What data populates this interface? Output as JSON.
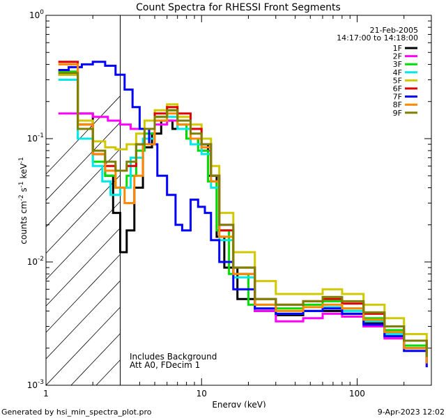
{
  "chart_data": {
    "type": "line",
    "title": "Count Spectra for RHESSI Front Segments",
    "xlabel": "Energy (keV)",
    "ylabel": "counts cm^-2 s^-1 keV^-1",
    "xscale": "log",
    "yscale": "log",
    "xlim": [
      1.0,
      300
    ],
    "ylim": [
      0.001,
      1.0
    ],
    "x_ticks": [
      {
        "value": 1,
        "label": "1"
      },
      {
        "value": 10,
        "label": "10"
      },
      {
        "value": 100,
        "label": "100"
      }
    ],
    "y_ticks": [
      {
        "value": 0.001,
        "base": "10",
        "exp": "-3"
      },
      {
        "value": 0.01,
        "base": "10",
        "exp": "-2"
      },
      {
        "value": 0.1,
        "base": "10",
        "exp": "-1"
      },
      {
        "value": 1,
        "base": "10",
        "exp": "0"
      }
    ],
    "date": "21-Feb-2005",
    "time_range": "14:17:00 to 14:18:00",
    "annotations": [
      "Includes Background",
      "Att A0, FDecim 1"
    ],
    "hatched_region_x": [
      1.0,
      3.0
    ],
    "legend_position": "top-right",
    "series": [
      {
        "name": "1F",
        "color": "#000000",
        "points": [
          [
            1.2,
            0.33
          ],
          [
            1.6,
            0.16
          ],
          [
            2.0,
            0.075
          ],
          [
            2.4,
            0.05
          ],
          [
            2.7,
            0.025
          ],
          [
            3.0,
            0.012
          ],
          [
            3.3,
            0.018
          ],
          [
            3.7,
            0.04
          ],
          [
            4.2,
            0.085
          ],
          [
            4.8,
            0.11
          ],
          [
            5.5,
            0.14
          ],
          [
            6.5,
            0.12
          ],
          [
            8.0,
            0.1
          ],
          [
            9.5,
            0.09
          ],
          [
            11.0,
            0.05
          ],
          [
            12.5,
            0.016
          ],
          [
            14,
            0.009
          ],
          [
            17,
            0.005
          ],
          [
            22,
            0.004
          ],
          [
            30,
            0.0037
          ],
          [
            45,
            0.004
          ],
          [
            60,
            0.004
          ],
          [
            80,
            0.0038
          ],
          [
            110,
            0.0032
          ],
          [
            150,
            0.0025
          ],
          [
            200,
            0.002
          ],
          [
            280,
            0.0015
          ]
        ]
      },
      {
        "name": "2F",
        "color": "#ff00ff",
        "points": [
          [
            1.2,
            0.16
          ],
          [
            1.6,
            0.16
          ],
          [
            2.0,
            0.15
          ],
          [
            2.5,
            0.14
          ],
          [
            3.0,
            0.13
          ],
          [
            3.5,
            0.12
          ],
          [
            4.0,
            0.12
          ],
          [
            4.5,
            0.12
          ],
          [
            5.0,
            0.13
          ],
          [
            6.0,
            0.14
          ],
          [
            7.0,
            0.12
          ],
          [
            8.5,
            0.1
          ],
          [
            10,
            0.08
          ],
          [
            11.5,
            0.05
          ],
          [
            13,
            0.02
          ],
          [
            16,
            0.008
          ],
          [
            22,
            0.004
          ],
          [
            30,
            0.0033
          ],
          [
            45,
            0.0035
          ],
          [
            60,
            0.0038
          ],
          [
            80,
            0.0036
          ],
          [
            110,
            0.003
          ],
          [
            150,
            0.0024
          ],
          [
            200,
            0.002
          ],
          [
            280,
            0.0014
          ]
        ]
      },
      {
        "name": "3F",
        "color": "#00dd00",
        "points": [
          [
            1.2,
            0.35
          ],
          [
            1.6,
            0.12
          ],
          [
            2.0,
            0.065
          ],
          [
            2.4,
            0.05
          ],
          [
            2.8,
            0.04
          ],
          [
            3.3,
            0.05
          ],
          [
            3.8,
            0.08
          ],
          [
            4.3,
            0.11
          ],
          [
            5.0,
            0.15
          ],
          [
            6.0,
            0.17
          ],
          [
            7.0,
            0.13
          ],
          [
            8.0,
            0.1
          ],
          [
            9.5,
            0.08
          ],
          [
            11,
            0.045
          ],
          [
            12.5,
            0.018
          ],
          [
            15,
            0.008
          ],
          [
            20,
            0.0045
          ],
          [
            30,
            0.0042
          ],
          [
            45,
            0.0045
          ],
          [
            60,
            0.0048
          ],
          [
            80,
            0.0042
          ],
          [
            110,
            0.0035
          ],
          [
            150,
            0.0028
          ],
          [
            200,
            0.0021
          ],
          [
            280,
            0.0016
          ]
        ]
      },
      {
        "name": "4F",
        "color": "#00e8e8",
        "points": [
          [
            1.2,
            0.3
          ],
          [
            1.6,
            0.1
          ],
          [
            2.0,
            0.06
          ],
          [
            2.3,
            0.045
          ],
          [
            2.6,
            0.035
          ],
          [
            3.0,
            0.04
          ],
          [
            3.5,
            0.07
          ],
          [
            4.2,
            0.1
          ],
          [
            5.0,
            0.14
          ],
          [
            6.0,
            0.15
          ],
          [
            7.0,
            0.12
          ],
          [
            8.5,
            0.09
          ],
          [
            10,
            0.075
          ],
          [
            11.5,
            0.04
          ],
          [
            13,
            0.015
          ],
          [
            16,
            0.0075
          ],
          [
            22,
            0.0042
          ],
          [
            30,
            0.0038
          ],
          [
            45,
            0.004
          ],
          [
            60,
            0.0043
          ],
          [
            80,
            0.004
          ],
          [
            110,
            0.0033
          ],
          [
            150,
            0.0026
          ],
          [
            200,
            0.002
          ],
          [
            280,
            0.0015
          ]
        ]
      },
      {
        "name": "5F",
        "color": "#d0c800",
        "points": [
          [
            1.2,
            0.33
          ],
          [
            1.6,
            0.14
          ],
          [
            2.0,
            0.095
          ],
          [
            2.4,
            0.085
          ],
          [
            2.8,
            0.082
          ],
          [
            3.3,
            0.09
          ],
          [
            3.8,
            0.11
          ],
          [
            4.3,
            0.14
          ],
          [
            5.0,
            0.17
          ],
          [
            6.0,
            0.19
          ],
          [
            7.0,
            0.15
          ],
          [
            8.5,
            0.13
          ],
          [
            10,
            0.1
          ],
          [
            11.5,
            0.06
          ],
          [
            13,
            0.025
          ],
          [
            16,
            0.012
          ],
          [
            22,
            0.007
          ],
          [
            30,
            0.0055
          ],
          [
            45,
            0.0055
          ],
          [
            60,
            0.006
          ],
          [
            80,
            0.0055
          ],
          [
            110,
            0.0045
          ],
          [
            150,
            0.0035
          ],
          [
            200,
            0.0026
          ],
          [
            280,
            0.0019
          ]
        ]
      },
      {
        "name": "6F",
        "color": "#e00000",
        "points": [
          [
            1.2,
            0.42
          ],
          [
            1.6,
            0.13
          ],
          [
            2.0,
            0.075
          ],
          [
            2.4,
            0.06
          ],
          [
            2.8,
            0.055
          ],
          [
            3.3,
            0.06
          ],
          [
            3.8,
            0.09
          ],
          [
            4.3,
            0.12
          ],
          [
            5.0,
            0.16
          ],
          [
            6.0,
            0.18
          ],
          [
            7.0,
            0.16
          ],
          [
            8.5,
            0.12
          ],
          [
            10,
            0.09
          ],
          [
            11.5,
            0.05
          ],
          [
            13,
            0.018
          ],
          [
            16,
            0.009
          ],
          [
            22,
            0.005
          ],
          [
            30,
            0.0045
          ],
          [
            45,
            0.0048
          ],
          [
            60,
            0.005
          ],
          [
            80,
            0.0046
          ],
          [
            110,
            0.0038
          ],
          [
            150,
            0.003
          ],
          [
            200,
            0.0023
          ],
          [
            280,
            0.0017
          ]
        ]
      },
      {
        "name": "7F",
        "color": "#0000ff",
        "points": [
          [
            1.2,
            0.36
          ],
          [
            1.4,
            0.38
          ],
          [
            1.7,
            0.4
          ],
          [
            2.0,
            0.42
          ],
          [
            2.4,
            0.39
          ],
          [
            2.8,
            0.33
          ],
          [
            3.2,
            0.25
          ],
          [
            3.6,
            0.18
          ],
          [
            4.0,
            0.12
          ],
          [
            4.6,
            0.09
          ],
          [
            5.2,
            0.05
          ],
          [
            6.0,
            0.035
          ],
          [
            6.8,
            0.02
          ],
          [
            7.5,
            0.018
          ],
          [
            8.5,
            0.032
          ],
          [
            9.5,
            0.028
          ],
          [
            10.5,
            0.025
          ],
          [
            11.5,
            0.015
          ],
          [
            13,
            0.01
          ],
          [
            16,
            0.006
          ],
          [
            22,
            0.0042
          ],
          [
            30,
            0.0038
          ],
          [
            45,
            0.004
          ],
          [
            60,
            0.0042
          ],
          [
            80,
            0.0038
          ],
          [
            110,
            0.0031
          ],
          [
            150,
            0.0025
          ],
          [
            200,
            0.0019
          ],
          [
            280,
            0.0014
          ]
        ]
      },
      {
        "name": "8F",
        "color": "#ff8800",
        "points": [
          [
            1.2,
            0.4
          ],
          [
            1.6,
            0.13
          ],
          [
            2.0,
            0.075
          ],
          [
            2.4,
            0.055
          ],
          [
            2.8,
            0.04
          ],
          [
            3.2,
            0.03
          ],
          [
            3.7,
            0.05
          ],
          [
            4.2,
            0.09
          ],
          [
            5.0,
            0.14
          ],
          [
            6.0,
            0.16
          ],
          [
            7.0,
            0.13
          ],
          [
            8.5,
            0.1
          ],
          [
            10,
            0.085
          ],
          [
            11.5,
            0.045
          ],
          [
            13,
            0.016
          ],
          [
            16,
            0.008
          ],
          [
            22,
            0.0045
          ],
          [
            30,
            0.004
          ],
          [
            45,
            0.0043
          ],
          [
            60,
            0.0045
          ],
          [
            80,
            0.0042
          ],
          [
            110,
            0.0034
          ],
          [
            150,
            0.0027
          ],
          [
            200,
            0.002
          ],
          [
            280,
            0.0015
          ]
        ]
      },
      {
        "name": "9F",
        "color": "#808000",
        "points": [
          [
            1.2,
            0.34
          ],
          [
            1.6,
            0.12
          ],
          [
            2.0,
            0.08
          ],
          [
            2.4,
            0.065
          ],
          [
            2.8,
            0.055
          ],
          [
            3.3,
            0.065
          ],
          [
            3.8,
            0.09
          ],
          [
            4.3,
            0.12
          ],
          [
            5.0,
            0.15
          ],
          [
            6.0,
            0.17
          ],
          [
            7.0,
            0.14
          ],
          [
            8.5,
            0.11
          ],
          [
            10,
            0.09
          ],
          [
            11.5,
            0.05
          ],
          [
            13,
            0.02
          ],
          [
            16,
            0.009
          ],
          [
            22,
            0.005
          ],
          [
            30,
            0.0045
          ],
          [
            45,
            0.0048
          ],
          [
            60,
            0.0052
          ],
          [
            80,
            0.0048
          ],
          [
            110,
            0.0039
          ],
          [
            150,
            0.003
          ],
          [
            200,
            0.0023
          ],
          [
            280,
            0.0017
          ]
        ]
      }
    ]
  },
  "footer": {
    "left": "Generated by hsi_min_spectra_plot.pro",
    "right": "9-Apr-2023 12:02"
  }
}
